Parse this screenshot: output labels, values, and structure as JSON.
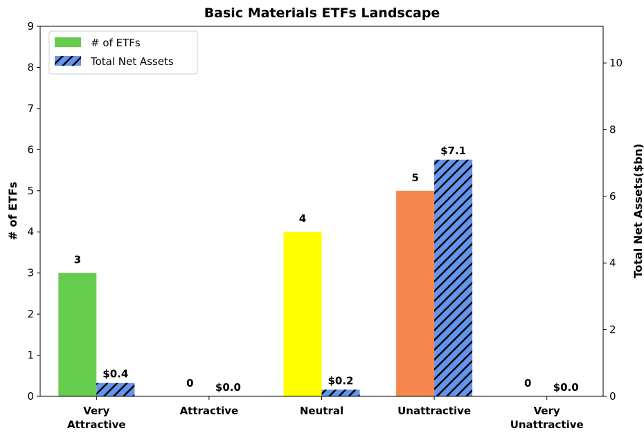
{
  "chart_data": {
    "type": "bar",
    "title": "Basic Materials ETFs Landscape",
    "categories": [
      "Very\nAttractive",
      "Attractive",
      "Neutral",
      "Unattractive",
      "Very\nUnattractive"
    ],
    "ylabel_left": "# of ETFs",
    "ylabel_right": "Total Net Assets($bn)",
    "ylim_left": [
      0,
      9
    ],
    "ylim_right": [
      0,
      11.1
    ],
    "yticks_left": [
      "0",
      "1",
      "2",
      "3",
      "4",
      "5",
      "6",
      "7",
      "8",
      "9"
    ],
    "yticks_right": [
      "0",
      "2",
      "4",
      "6",
      "8",
      "10"
    ],
    "grid": false,
    "legend_position": "top-left",
    "series": [
      {
        "name": "# of ETFs",
        "axis": "left",
        "values": [
          3,
          0,
          4,
          5,
          0
        ],
        "labels": [
          "3",
          "0",
          "4",
          "5",
          "0"
        ],
        "colors": [
          "#66cc4d",
          "#66cc4d",
          "#ffff00",
          "#f5874f",
          "#f5874f"
        ],
        "legend_color": "#66cc4d"
      },
      {
        "name": "Total Net Assets",
        "axis": "right",
        "values": [
          0.4,
          0.0,
          0.2,
          7.1,
          0.0
        ],
        "labels": [
          "$0.4",
          "$0.0",
          "$0.2",
          "$7.1",
          "$0.0"
        ],
        "color": "#6495ed",
        "hatch": "//"
      }
    ]
  }
}
